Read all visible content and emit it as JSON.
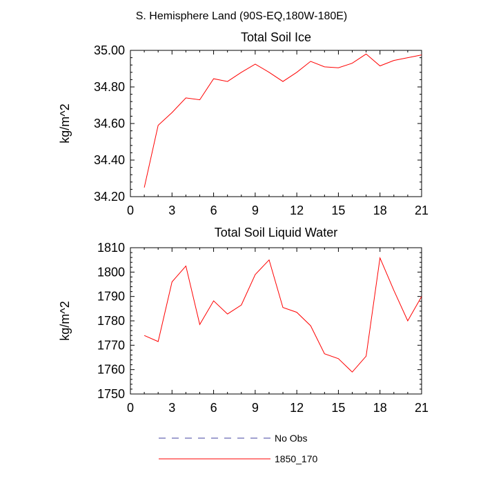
{
  "figure_title": "S. Hemisphere Land (90S-EQ,180W-180E)",
  "legend": [
    {
      "label": "No Obs",
      "color": "#4040a0",
      "dash": true
    },
    {
      "label": "1850_170",
      "color": "#ff0000",
      "dash": false
    }
  ],
  "chart_data": [
    {
      "type": "line",
      "title": "Total Soil Ice",
      "xlabel": "",
      "ylabel": "kg/m^2",
      "xlim": [
        0,
        21
      ],
      "ylim": [
        34.2,
        35.0
      ],
      "x_ticks": [
        0,
        3,
        6,
        9,
        12,
        15,
        18,
        21
      ],
      "y_ticks": [
        "34.20",
        "34.40",
        "34.60",
        "34.80",
        "35.00"
      ],
      "grid": false,
      "series": [
        {
          "name": "1850_170",
          "color": "#ff0000",
          "x": [
            1,
            2,
            3,
            4,
            5,
            6,
            7,
            8,
            9,
            10,
            11,
            12,
            13,
            14,
            15,
            16,
            17,
            18,
            19,
            20,
            21
          ],
          "values": [
            34.25,
            34.59,
            34.66,
            34.74,
            34.73,
            34.845,
            34.83,
            34.88,
            34.925,
            34.88,
            34.83,
            34.88,
            34.94,
            34.91,
            34.905,
            34.93,
            34.98,
            34.915,
            34.945,
            34.96,
            34.975
          ]
        }
      ]
    },
    {
      "type": "line",
      "title": "Total Soil Liquid Water",
      "xlabel": "",
      "ylabel": "kg/m^2",
      "xlim": [
        0,
        21
      ],
      "ylim": [
        1750,
        1810
      ],
      "x_ticks": [
        0,
        3,
        6,
        9,
        12,
        15,
        18,
        21
      ],
      "y_ticks": [
        "1750",
        "1760",
        "1770",
        "1780",
        "1790",
        "1800",
        "1810"
      ],
      "grid": false,
      "series": [
        {
          "name": "1850_170",
          "color": "#ff0000",
          "x": [
            1,
            2,
            3,
            4,
            5,
            6,
            7,
            8,
            9,
            10,
            11,
            12,
            13,
            14,
            15,
            16,
            17,
            18,
            19,
            20,
            21
          ],
          "values": [
            1774,
            1771.5,
            1796,
            1802.5,
            1778.5,
            1788.2,
            1782.8,
            1786.5,
            1799,
            1805,
            1785.5,
            1783.5,
            1778,
            1766.5,
            1764.5,
            1759,
            1765.5,
            1805.8,
            1792.5,
            1780,
            1790
          ]
        }
      ]
    }
  ]
}
